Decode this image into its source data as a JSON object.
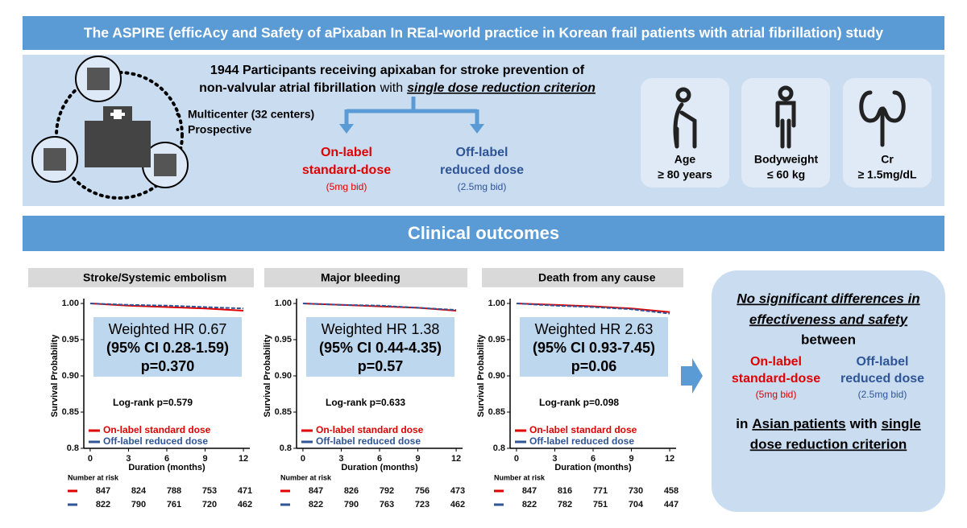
{
  "title": "The ASPIRE (efficAcy and Safety of aPixaban In REal-world practice in Korean frail patients with atrial fibrillation) study",
  "study": {
    "line1": "1944 Participants receiving apixaban for stroke prevention of",
    "line2a": "non-valvular atrial fibrillation",
    "line2b": "with",
    "line2c": "single dose reduction criterion",
    "bullets": [
      "Multicenter (32 centers)",
      "Prospective"
    ],
    "doses": [
      {
        "name": [
          "On-label",
          "standard-dose"
        ],
        "dose": "(5mg bid)",
        "color": "#e00000"
      },
      {
        "name": [
          "Off-label",
          "reduced dose"
        ],
        "dose": "(2.5mg bid)",
        "color": "#2f5597"
      }
    ]
  },
  "criteria": [
    {
      "label": "Age",
      "value": "≥ 80 years"
    },
    {
      "label": "Bodyweight",
      "value": "≤ 60 kg"
    },
    {
      "label": "Cr",
      "value": "≥ 1.5mg/dL"
    }
  ],
  "section": "Clinical outcomes",
  "chart_data": [
    {
      "type": "line",
      "title": "Stroke/Systemic embolism",
      "annotations": [
        "Weighted HR 0.67",
        "(95% CI 0.28-1.59)",
        "p=0.370"
      ],
      "logrank": "Log-rank p=0.579",
      "xlabel": "Duration (months)",
      "ylabel": "Survival Probability",
      "x": [
        0,
        3,
        6,
        9,
        12
      ],
      "series": [
        {
          "name": "On-label standard dose",
          "color": "#e00000",
          "values": [
            1.0,
            0.997,
            0.995,
            0.993,
            0.99
          ]
        },
        {
          "name": "Off-label reduced dose",
          "color": "#2f5597",
          "values": [
            1.0,
            0.998,
            0.997,
            0.995,
            0.993
          ]
        }
      ],
      "xlim": [
        -0.5,
        12.5
      ],
      "ylim": [
        0.8,
        1.0
      ],
      "xticks": [
        0,
        3,
        6,
        9,
        12
      ],
      "yticks": [
        0.8,
        0.85,
        {
          "value": 0.9,
          "label": "0.90"
        },
        0.95,
        {
          "value": 1.0,
          "label": "1.00"
        }
      ],
      "risk_title": "Number at risk",
      "risk": [
        [
          847,
          824,
          788,
          753,
          471
        ],
        [
          822,
          790,
          761,
          720,
          462
        ]
      ]
    },
    {
      "type": "line",
      "title": "Major bleeding",
      "annotations": [
        "Weighted HR 1.38",
        "(95% CI 0.44-4.35)",
        "p=0.57"
      ],
      "logrank": "Log-rank p=0.633",
      "xlabel": "Duration (months)",
      "ylabel": "Survival Probability",
      "x": [
        0,
        3,
        6,
        9,
        12
      ],
      "series": [
        {
          "name": "On-label standard dose",
          "color": "#e00000",
          "values": [
            1.0,
            0.998,
            0.996,
            0.994,
            0.99
          ]
        },
        {
          "name": "Off-label reduced dose",
          "color": "#2f5597",
          "values": [
            1.0,
            0.998,
            0.997,
            0.994,
            0.991
          ]
        }
      ],
      "xlim": [
        -0.5,
        12.5
      ],
      "ylim": [
        0.8,
        1.0
      ],
      "xticks": [
        0,
        3,
        6,
        9,
        12
      ],
      "yticks": [
        0.8,
        0.85,
        {
          "value": 0.9,
          "label": "0.90"
        },
        0.95,
        {
          "value": 1.0,
          "label": "1.00"
        }
      ],
      "risk_title": "Number at risk",
      "risk": [
        [
          847,
          826,
          792,
          756,
          473
        ],
        [
          822,
          790,
          763,
          723,
          462
        ]
      ]
    },
    {
      "type": "line",
      "title": "Death from any cause",
      "annotations": [
        "Weighted HR 2.63",
        "(95% CI 0.93-7.45)",
        "p=0.06"
      ],
      "logrank": "Log-rank p=0.098",
      "xlabel": "Duration (months)",
      "ylabel": "Survival Probability",
      "x": [
        0,
        3,
        6,
        9,
        12
      ],
      "series": [
        {
          "name": "On-label standard dose",
          "color": "#e00000",
          "values": [
            1.0,
            0.998,
            0.996,
            0.993,
            0.988
          ]
        },
        {
          "name": "Off-label reduced dose",
          "color": "#2f5597",
          "values": [
            1.0,
            0.997,
            0.995,
            0.992,
            0.986
          ]
        }
      ],
      "xlim": [
        -0.5,
        12.5
      ],
      "ylim": [
        0.8,
        1.0
      ],
      "xticks": [
        0,
        3,
        6,
        9,
        12
      ],
      "yticks": [
        0.8,
        0.85,
        {
          "value": 0.9,
          "label": "0.90"
        },
        0.95,
        {
          "value": 1.0,
          "label": "1.00"
        }
      ],
      "risk_title": "Number at risk",
      "risk": [
        [
          847,
          816,
          771,
          730,
          458
        ],
        [
          822,
          782,
          751,
          704,
          447
        ]
      ]
    }
  ],
  "conclusion": {
    "line1": "No significant differences in",
    "line2": "effectiveness and safety",
    "line3": "between",
    "line4": [
      "in",
      "Asian patients",
      "with",
      "single"
    ],
    "line5": "dose reduction criterion"
  }
}
